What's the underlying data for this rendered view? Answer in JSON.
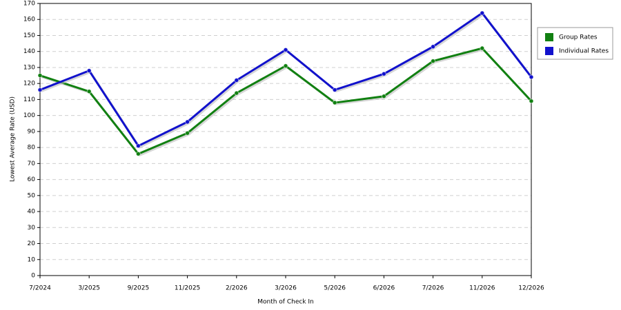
{
  "chart_data": {
    "type": "line",
    "x_label": "Month of Check In",
    "y_label": "Lowest Average Rate (USD)",
    "categories": [
      "7/2024",
      "3/2025",
      "9/2025",
      "11/2025",
      "2/2026",
      "3/2026",
      "5/2026",
      "6/2026",
      "7/2026",
      "11/2026",
      "12/2026"
    ],
    "series": [
      {
        "name": "Group Rates",
        "color": "#118011",
        "values": [
          125,
          115,
          76,
          89,
          114,
          131,
          108,
          112,
          134,
          142,
          109
        ]
      },
      {
        "name": "Individual Rates",
        "color": "#1111cc",
        "values": [
          116,
          128,
          81,
          96,
          122,
          141,
          116,
          126,
          143,
          164,
          124
        ]
      }
    ],
    "ylim": [
      0,
      170
    ],
    "yticks": [
      0,
      10,
      20,
      30,
      40,
      50,
      60,
      70,
      80,
      90,
      100,
      110,
      120,
      130,
      140,
      150,
      160,
      170
    ],
    "grid": true,
    "legend": "right"
  }
}
